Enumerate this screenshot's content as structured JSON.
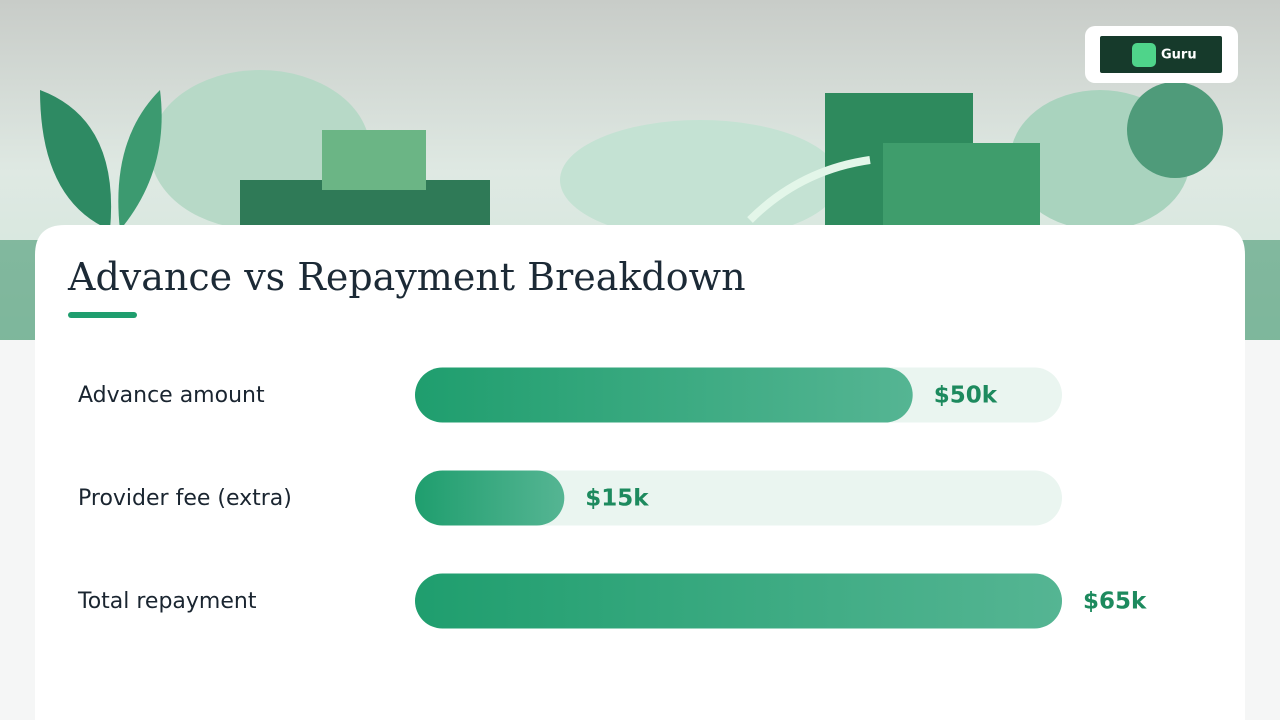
{
  "button": {
    "label": "Guru"
  },
  "chart_data": {
    "type": "bar",
    "orientation": "horizontal",
    "title": "Advance vs Repayment Breakdown",
    "categories": [
      "Advance amount",
      "Provider fee (extra)",
      "Total repayment"
    ],
    "values": [
      50000,
      15000,
      65000
    ],
    "value_labels": [
      "$50k",
      "$15k",
      "$65k"
    ],
    "xlim": [
      0,
      65000
    ],
    "color": "#1f9e6e"
  }
}
